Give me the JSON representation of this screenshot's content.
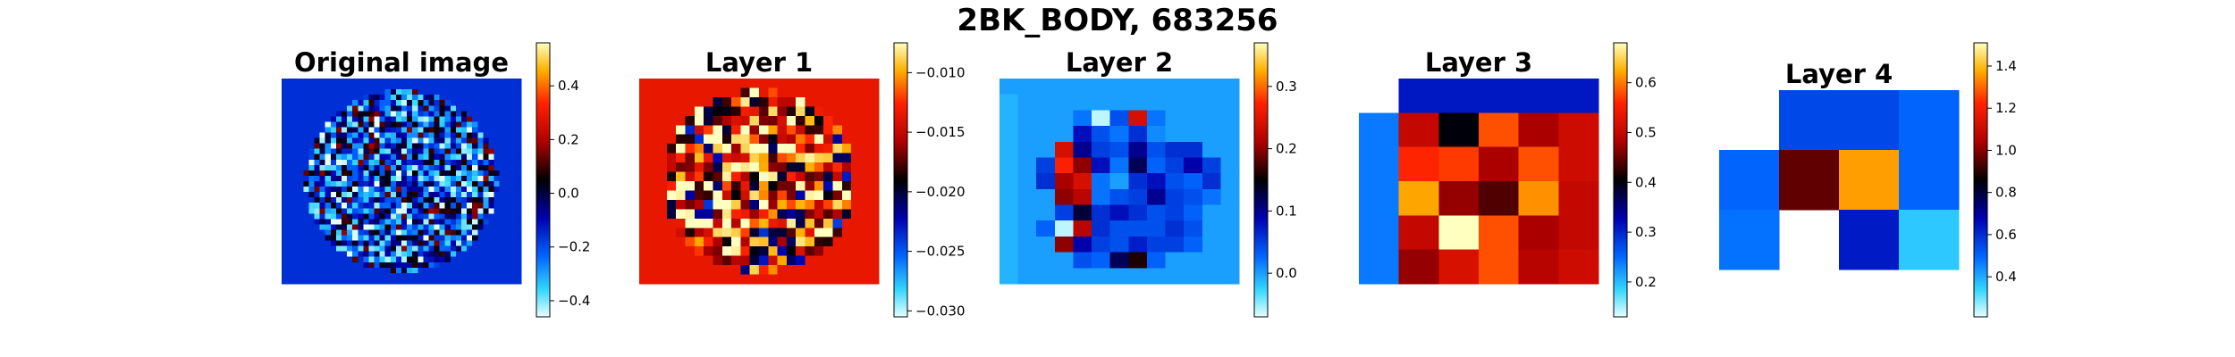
{
  "figure": {
    "suptitle": "2BK_BODY, 683256"
  },
  "colormap": {
    "name": "diverging-cyan-blue-black-red-yellow",
    "stops": [
      [
        0.0,
        "#e6ffff"
      ],
      [
        0.1,
        "#33d6ff"
      ],
      [
        0.22,
        "#0066ff"
      ],
      [
        0.36,
        "#0000b0"
      ],
      [
        0.5,
        "#000000"
      ],
      [
        0.64,
        "#b00000"
      ],
      [
        0.78,
        "#ff2200"
      ],
      [
        0.9,
        "#ffb000"
      ],
      [
        1.0,
        "#ffffc0"
      ]
    ]
  },
  "chart_data": [
    {
      "type": "heatmap",
      "title": "Original image",
      "vmin": -0.46,
      "vmax": 0.56,
      "colorbar_ticks": [
        -0.4,
        -0.2,
        0.0,
        0.2,
        0.4
      ],
      "colorbar_tick_labels": [
        "−0.4",
        "−0.2",
        "0.0",
        "0.2",
        "0.4"
      ],
      "grid": {
        "rows": 38,
        "cols": 44,
        "shape": "ellipse",
        "background_value": -0.16,
        "spread": 0.3,
        "seed": 7
      }
    },
    {
      "type": "heatmap",
      "title": "Layer 1",
      "vmin": -0.0305,
      "vmax": -0.0075,
      "colorbar_ticks": [
        -0.03,
        -0.025,
        -0.02,
        -0.015,
        -0.01
      ],
      "colorbar_tick_labels": [
        "−0.030",
        "−0.025",
        "−0.020",
        "−0.015",
        "−0.010"
      ],
      "grid": {
        "rows": 22,
        "cols": 26,
        "shape": "ellipse",
        "background_value": -0.0135,
        "spread": 0.0085,
        "seed": 3
      }
    },
    {
      "type": "heatmap",
      "title": "Layer 2",
      "vmin": -0.07,
      "vmax": 0.37,
      "colorbar_ticks": [
        0.0,
        0.1,
        0.2,
        0.3
      ],
      "colorbar_tick_labels": [
        "0.0",
        "0.1",
        "0.2",
        "0.3"
      ],
      "values": [
        [
          0.0,
          0.0,
          0.0,
          0.0,
          0.0,
          0.0,
          0.0,
          0.0,
          0.0,
          0.0,
          0.0,
          0.0,
          0.0
        ],
        [
          -0.01,
          0.0,
          0.0,
          0.0,
          0.0,
          0.0,
          0.0,
          0.0,
          0.0,
          0.0,
          0.0,
          0.0,
          0.0
        ],
        [
          -0.01,
          0.0,
          0.0,
          0.0,
          0.02,
          -0.06,
          0.04,
          0.24,
          0.02,
          0.0,
          0.0,
          0.0,
          0.0
        ],
        [
          -0.01,
          0.0,
          0.0,
          0.0,
          0.08,
          0.04,
          0.02,
          0.06,
          0.01,
          0.0,
          0.0,
          0.0,
          0.0
        ],
        [
          -0.01,
          0.0,
          0.0,
          0.24,
          0.1,
          0.05,
          0.04,
          0.1,
          0.04,
          0.06,
          0.06,
          0.0,
          0.0
        ],
        [
          -0.01,
          0.0,
          0.05,
          0.27,
          0.2,
          0.08,
          0.02,
          0.12,
          0.03,
          0.05,
          0.09,
          0.05,
          0.0
        ],
        [
          -0.01,
          0.0,
          0.06,
          0.21,
          0.24,
          0.02,
          0.0,
          0.06,
          0.08,
          0.04,
          0.03,
          0.06,
          0.0
        ],
        [
          -0.01,
          0.0,
          0.0,
          0.2,
          0.22,
          0.02,
          0.04,
          0.05,
          0.1,
          0.05,
          0.04,
          0.02,
          0.0
        ],
        [
          -0.01,
          0.0,
          0.0,
          0.05,
          0.13,
          0.06,
          0.08,
          0.06,
          0.04,
          0.05,
          0.03,
          0.0,
          0.0
        ],
        [
          -0.01,
          0.0,
          0.03,
          -0.06,
          0.22,
          0.06,
          0.04,
          0.04,
          0.04,
          0.06,
          0.04,
          0.0,
          0.0
        ],
        [
          -0.01,
          0.0,
          0.0,
          0.2,
          0.09,
          0.05,
          0.04,
          0.07,
          0.05,
          0.05,
          0.03,
          0.0,
          0.0
        ],
        [
          -0.01,
          0.0,
          0.0,
          0.0,
          0.04,
          0.03,
          0.12,
          0.16,
          0.03,
          0.0,
          0.0,
          0.0,
          0.0
        ],
        [
          -0.01,
          0.0,
          0.0,
          0.0,
          0.0,
          0.0,
          0.0,
          0.0,
          0.0,
          0.0,
          0.0,
          0.0,
          0.0
        ]
      ]
    },
    {
      "type": "heatmap",
      "title": "Layer 3",
      "vmin": 0.13,
      "vmax": 0.68,
      "colorbar_ticks": [
        0.2,
        0.3,
        0.4,
        0.5,
        0.6
      ],
      "colorbar_tick_labels": [
        "0.2",
        "0.3",
        "0.4",
        "0.5",
        "0.6"
      ],
      "values": [
        [
          null,
          0.31,
          0.31,
          0.31,
          0.31,
          0.31
        ],
        [
          0.24,
          0.5,
          0.4,
          0.58,
          0.48,
          0.51
        ],
        [
          0.24,
          0.56,
          0.57,
          0.48,
          0.58,
          0.51
        ],
        [
          0.24,
          0.62,
          0.47,
          0.44,
          0.61,
          0.5
        ],
        [
          0.24,
          0.5,
          0.68,
          0.58,
          0.48,
          0.5
        ],
        [
          0.24,
          0.47,
          0.52,
          0.58,
          0.49,
          0.51
        ]
      ]
    },
    {
      "type": "heatmap",
      "title": "Layer 4",
      "vmin": 0.21,
      "vmax": 1.51,
      "colorbar_ticks": [
        0.4,
        0.6,
        0.8,
        1.0,
        1.2,
        1.4
      ],
      "colorbar_tick_labels": [
        "0.4",
        "0.6",
        "0.8",
        "1.0",
        "1.2",
        "1.4"
      ],
      "values": [
        [
          null,
          0.55,
          0.55,
          0.5
        ],
        [
          0.5,
          0.96,
          1.36,
          0.5
        ],
        [
          0.48,
          null,
          0.63,
          0.36
        ]
      ]
    }
  ]
}
